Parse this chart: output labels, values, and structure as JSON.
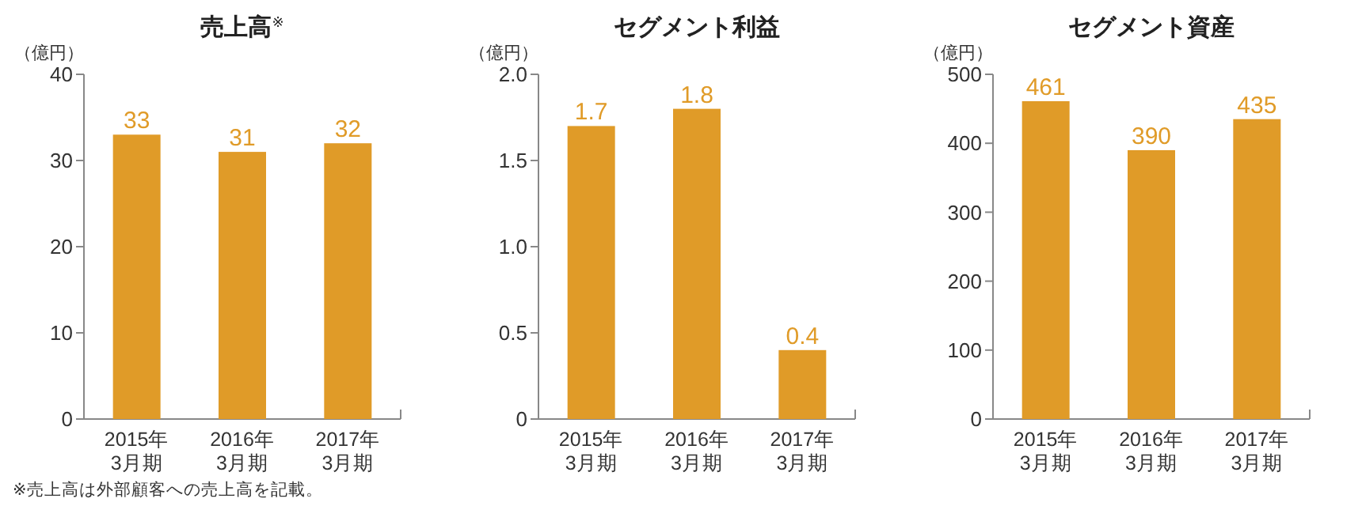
{
  "chart_data": [
    {
      "type": "bar",
      "title": "売上高$^{※}$",
      "ylabel": "（億円）",
      "categories": [
        "2015年\n3月期",
        "2016年\n3月期",
        "2017年\n3月期"
      ],
      "values": [
        33,
        31,
        32
      ],
      "color": "#e09b28",
      "ylim": [
        0,
        40
      ],
      "yticks": [
        0,
        10,
        20,
        30,
        40
      ],
      "data_labels": true,
      "annotations": [
        "※売上高は外部顧客への売上高を記載。"
      ]
    },
    {
      "type": "bar",
      "title": "セグメント利益",
      "ylabel": "（億円）",
      "categories": [
        "2015年\n3月期",
        "2016年\n3月期",
        "2017年\n3月期"
      ],
      "values": [
        1.7,
        1.8,
        0.4
      ],
      "color": "#e09b28",
      "ylim": [
        0,
        2
      ],
      "yticks": [
        0,
        {
          "value": 0.5,
          "label": "0.5"
        },
        {
          "value": 1,
          "label": "1.0"
        },
        {
          "value": 1.5,
          "label": "1.5"
        },
        {
          "value": 2,
          "label": "2.0"
        }
      ],
      "data_labels": true
    },
    {
      "type": "bar",
      "title": "セグメント資産",
      "ylabel": "（億円）",
      "categories": [
        "2015年\n3月期",
        "2016年\n3月期",
        "2017年\n3月期"
      ],
      "values": [
        461,
        390,
        435
      ],
      "color": "#e09b28",
      "ylim": [
        0,
        500
      ],
      "yticks": [
        0,
        100,
        200,
        300,
        400,
        500
      ],
      "data_labels": true
    }
  ]
}
